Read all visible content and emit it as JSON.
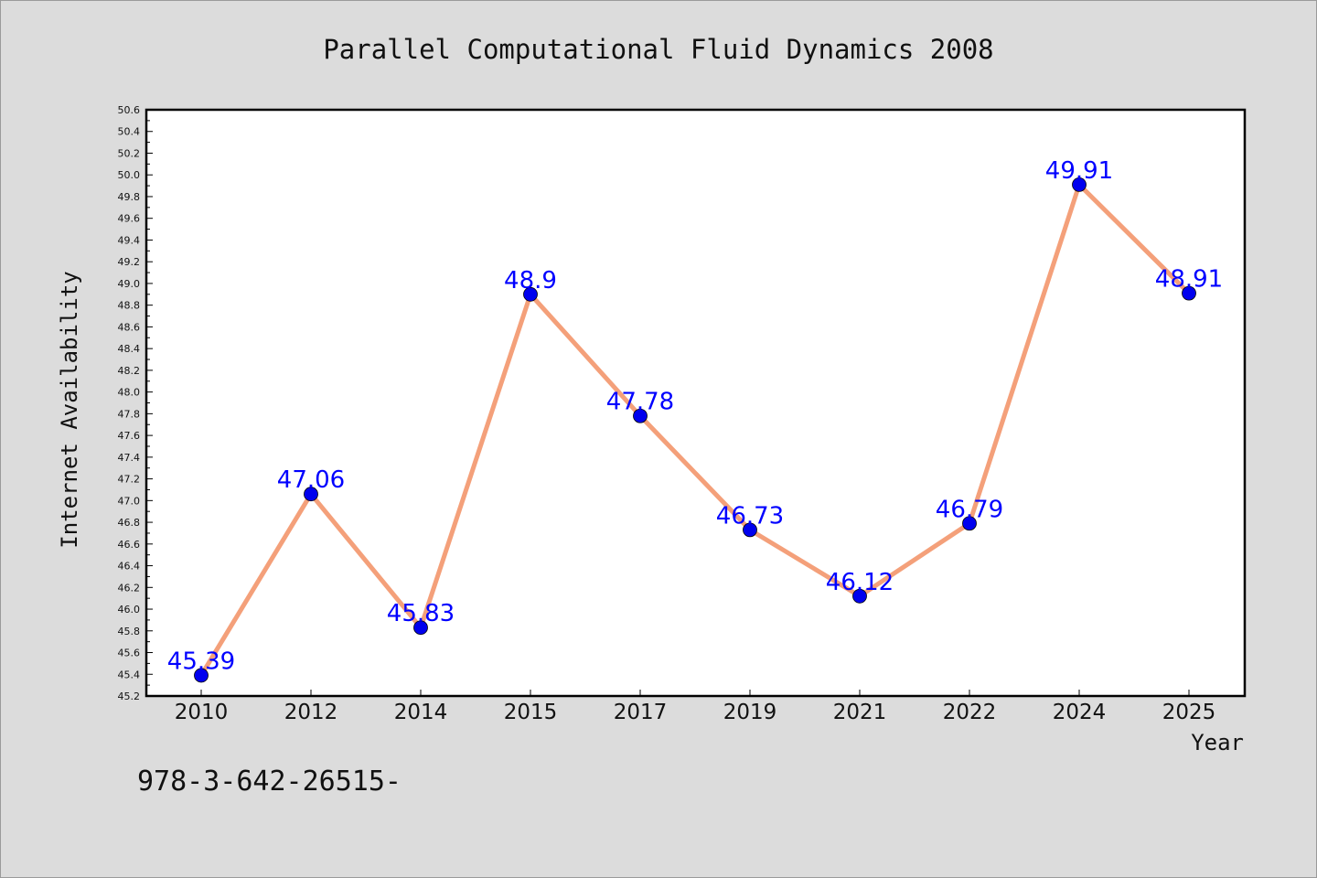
{
  "chart_data": {
    "type": "line",
    "title": "Parallel Computational Fluid Dynamics 2008",
    "xlabel": "Year",
    "ylabel": "Internet Availability",
    "categories": [
      "2010",
      "2012",
      "2014",
      "2015",
      "2017",
      "2019",
      "2021",
      "2022",
      "2024",
      "2025"
    ],
    "values": [
      45.39,
      47.06,
      45.83,
      48.9,
      47.78,
      46.73,
      46.12,
      46.79,
      49.91,
      48.91
    ],
    "data_labels": [
      "45.39",
      "47.06",
      "45.83",
      "48.9",
      "47.78",
      "46.73",
      "46.12",
      "46.79",
      "49.91",
      "48.91"
    ],
    "ylim": [
      45.2,
      50.6
    ],
    "yticks": [
      "45.2",
      "45.4",
      "45.6",
      "45.8",
      "46.0",
      "46.2",
      "46.4",
      "46.6",
      "46.8",
      "47.0",
      "47.2",
      "47.4",
      "47.6",
      "47.8",
      "48.0",
      "48.2",
      "48.4",
      "48.6",
      "48.8",
      "49.0",
      "49.2",
      "49.4",
      "49.6",
      "49.8",
      "50.0",
      "50.2",
      "50.4",
      "50.6"
    ],
    "grid": false,
    "line_color": "#f4a07a",
    "marker_color": "#0000ee",
    "label_color": "#0000ff"
  },
  "footer": {
    "text": "978-3-642-26515-"
  }
}
